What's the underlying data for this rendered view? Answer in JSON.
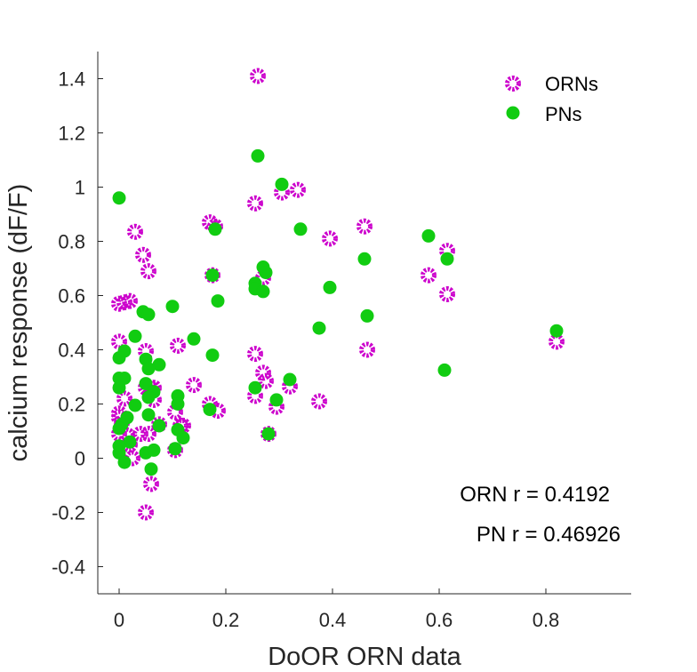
{
  "chart_data": {
    "type": "scatter",
    "xlabel": "DoOR ORN data",
    "ylabel": "calcium response (dF/F)",
    "xlim": [
      -0.04,
      0.96
    ],
    "ylim": [
      -0.5,
      1.5
    ],
    "xticks": [
      0,
      0.2,
      0.4,
      0.6,
      0.8
    ],
    "xtick_labels": [
      "0",
      "0.2",
      "0.4",
      "0.6",
      "0.8"
    ],
    "yticks": [
      -0.4,
      -0.2,
      0,
      0.2,
      0.4,
      0.6,
      0.8,
      1,
      1.2,
      1.4
    ],
    "ytick_labels": [
      "-0.4",
      "-0.2",
      "0",
      "0.2",
      "0.4",
      "0.6",
      "0.8",
      "1",
      "1.2",
      "1.4"
    ],
    "legend_position": "top-right",
    "grid": false,
    "series": [
      {
        "name": "ORNs",
        "color": "#cc00cc",
        "marker": "ring",
        "points": [
          [
            0.26,
            1.41
          ],
          [
            0.305,
            0.98
          ],
          [
            0.335,
            0.99
          ],
          [
            0.255,
            0.94
          ],
          [
            0.17,
            0.87
          ],
          [
            0.18,
            0.855
          ],
          [
            0.03,
            0.835
          ],
          [
            0.46,
            0.855
          ],
          [
            0.395,
            0.81
          ],
          [
            0.615,
            0.765
          ],
          [
            0.045,
            0.75
          ],
          [
            0.055,
            0.69
          ],
          [
            0.58,
            0.675
          ],
          [
            0.175,
            0.675
          ],
          [
            0.27,
            0.665
          ],
          [
            0.615,
            0.605
          ],
          [
            0.0,
            0.57
          ],
          [
            0.01,
            0.575
          ],
          [
            0.02,
            0.58
          ],
          [
            0.0,
            0.43
          ],
          [
            0.11,
            0.415
          ],
          [
            0.465,
            0.4
          ],
          [
            0.05,
            0.395
          ],
          [
            0.255,
            0.385
          ],
          [
            0.82,
            0.43
          ],
          [
            0.27,
            0.315
          ],
          [
            0.275,
            0.285
          ],
          [
            0.32,
            0.265
          ],
          [
            0.14,
            0.27
          ],
          [
            0.05,
            0.26
          ],
          [
            0.06,
            0.255
          ],
          [
            0.065,
            0.26
          ],
          [
            0.255,
            0.23
          ],
          [
            0.01,
            0.22
          ],
          [
            0.065,
            0.215
          ],
          [
            0.375,
            0.21
          ],
          [
            0.17,
            0.2
          ],
          [
            0.185,
            0.175
          ],
          [
            0.295,
            0.19
          ],
          [
            0.105,
            0.17
          ],
          [
            0.0,
            0.165
          ],
          [
            0.0,
            0.15
          ],
          [
            0.005,
            0.13
          ],
          [
            0.075,
            0.125
          ],
          [
            0.115,
            0.12
          ],
          [
            0.12,
            0.12
          ],
          [
            0.0,
            0.09
          ],
          [
            0.015,
            0.085
          ],
          [
            0.04,
            0.09
          ],
          [
            0.055,
            0.09
          ],
          [
            0.02,
            0.05
          ],
          [
            0.105,
            0.03
          ],
          [
            0.28,
            0.09
          ],
          [
            0.025,
            0.0
          ],
          [
            0.06,
            -0.095
          ],
          [
            0.05,
            -0.2
          ]
        ]
      },
      {
        "name": "PNs",
        "color": "#11cc11",
        "marker": "dot",
        "points": [
          [
            0.26,
            1.115
          ],
          [
            0.305,
            1.01
          ],
          [
            0.0,
            0.96
          ],
          [
            0.18,
            0.845
          ],
          [
            0.34,
            0.845
          ],
          [
            0.58,
            0.82
          ],
          [
            0.46,
            0.735
          ],
          [
            0.615,
            0.735
          ],
          [
            0.27,
            0.705
          ],
          [
            0.275,
            0.685
          ],
          [
            0.175,
            0.675
          ],
          [
            0.255,
            0.645
          ],
          [
            0.255,
            0.625
          ],
          [
            0.27,
            0.615
          ],
          [
            0.395,
            0.63
          ],
          [
            0.185,
            0.58
          ],
          [
            0.1,
            0.56
          ],
          [
            0.045,
            0.54
          ],
          [
            0.055,
            0.53
          ],
          [
            0.465,
            0.525
          ],
          [
            0.375,
            0.48
          ],
          [
            0.82,
            0.47
          ],
          [
            0.03,
            0.45
          ],
          [
            0.14,
            0.44
          ],
          [
            0.01,
            0.395
          ],
          [
            0.175,
            0.38
          ],
          [
            0.0,
            0.37
          ],
          [
            0.05,
            0.365
          ],
          [
            0.075,
            0.345
          ],
          [
            0.055,
            0.33
          ],
          [
            0.61,
            0.325
          ],
          [
            0.0,
            0.295
          ],
          [
            0.01,
            0.295
          ],
          [
            0.32,
            0.29
          ],
          [
            0.05,
            0.275
          ],
          [
            0.255,
            0.26
          ],
          [
            0.0,
            0.26
          ],
          [
            0.065,
            0.245
          ],
          [
            0.055,
            0.225
          ],
          [
            0.11,
            0.23
          ],
          [
            0.295,
            0.215
          ],
          [
            0.11,
            0.2
          ],
          [
            0.03,
            0.195
          ],
          [
            0.17,
            0.18
          ],
          [
            0.055,
            0.16
          ],
          [
            0.015,
            0.15
          ],
          [
            0.005,
            0.125
          ],
          [
            0.0,
            0.11
          ],
          [
            0.075,
            0.12
          ],
          [
            0.11,
            0.105
          ],
          [
            0.28,
            0.09
          ],
          [
            0.12,
            0.075
          ],
          [
            0.02,
            0.06
          ],
          [
            0.0,
            0.045
          ],
          [
            0.105,
            0.035
          ],
          [
            0.0,
            0.02
          ],
          [
            0.05,
            0.02
          ],
          [
            0.065,
            0.03
          ],
          [
            0.01,
            -0.015
          ],
          [
            0.06,
            -0.04
          ]
        ]
      }
    ],
    "annotations": [
      "ORN r = 0.4192",
      "PN r = 0.46926"
    ]
  }
}
